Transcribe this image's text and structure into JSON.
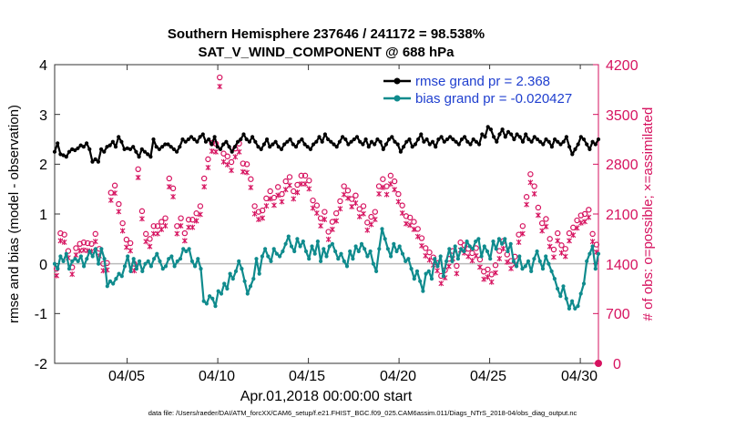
{
  "chart_data": {
    "type": "line",
    "title": "Southern Hemisphere 237646 / 241172 = 98.538%",
    "subtitle": "SAT_V_WIND_COMPONENT @ 688 hPa",
    "xlabel": "Apr.01,2018 00:00:00 start",
    "ylabel": "rmse and bias (model - observation)",
    "ylabel_right": "# of obs: o=possible; ×=assimilated",
    "footnote": "data file: /Users/raeder/DAI/ATM_forcXX/CAM6_setup/f.e21.FHIST_BGC.f09_025.CAM6assim.011/Diags_NTrS_2018-04/obs_diag_output.nc",
    "ylim": [
      -2,
      4
    ],
    "ylim_right": [
      0,
      4200
    ],
    "xlim": [
      1,
      31
    ],
    "yticks": [
      "4",
      "3",
      "2",
      "1",
      "0",
      "-1",
      "-2"
    ],
    "yticks_right": [
      "4200",
      "3500",
      "2800",
      "2100",
      "1400",
      "700",
      "0"
    ],
    "xticks": [
      {
        "label": "04/05",
        "day": 5
      },
      {
        "label": "04/10",
        "day": 10
      },
      {
        "label": "04/15",
        "day": 15
      },
      {
        "label": "04/20",
        "day": 20
      },
      {
        "label": "04/25",
        "day": 25
      },
      {
        "label": "04/30",
        "day": 30
      }
    ],
    "series": [
      {
        "name": "rmse grand pr = 2.368",
        "color": "#000000",
        "values": [
          2.25,
          2.42,
          2.2,
          2.18,
          2.15,
          2.25,
          2.3,
          2.28,
          2.32,
          2.38,
          2.35,
          2.42,
          2.3,
          2.05,
          2.1,
          2.05,
          2.3,
          2.25,
          2.35,
          2.38,
          2.45,
          2.35,
          2.55,
          2.45,
          2.3,
          2.32,
          2.3,
          2.35,
          2.25,
          2.15,
          2.3,
          2.25,
          2.2,
          2.15,
          2.5,
          2.35,
          2.3,
          2.35,
          2.4,
          2.4,
          2.35,
          2.3,
          2.25,
          2.35,
          2.5,
          2.45,
          2.5,
          2.55,
          2.5,
          2.45,
          2.55,
          2.6,
          2.45,
          2.5,
          2.4,
          2.55,
          2.35,
          2.3,
          2.4,
          2.45,
          2.35,
          2.25,
          2.35,
          2.45,
          2.5,
          2.6,
          2.5,
          2.45,
          2.55,
          2.45,
          2.35,
          2.3,
          2.4,
          2.5,
          2.35,
          2.4,
          2.45,
          2.35,
          2.3,
          2.4,
          2.45,
          2.5,
          2.4,
          2.35,
          2.45,
          2.5,
          2.4,
          2.35,
          2.3,
          2.4,
          2.45,
          2.55,
          2.45,
          2.6,
          2.5,
          2.45,
          2.4,
          2.35,
          2.45,
          2.55,
          2.5,
          2.4,
          2.45,
          2.5,
          2.55,
          2.45,
          2.4,
          2.5,
          2.35,
          2.45,
          2.4,
          2.5,
          2.45,
          2.3,
          2.4,
          2.5,
          2.55,
          2.45,
          2.4,
          2.25,
          2.35,
          2.45,
          2.5,
          2.35,
          2.4,
          2.5,
          2.6,
          2.45,
          2.5,
          2.4,
          2.45,
          2.35,
          2.5,
          2.55,
          2.45,
          2.5,
          2.55,
          2.5,
          2.45,
          2.4,
          2.5,
          2.55,
          2.45,
          2.4,
          2.5,
          2.45,
          2.4,
          2.6,
          2.55,
          2.75,
          2.7,
          2.55,
          2.45,
          2.6,
          2.7,
          2.55,
          2.65,
          2.6,
          2.5,
          2.6,
          2.55,
          2.45,
          2.6,
          2.5,
          2.45,
          2.55,
          2.5,
          2.45,
          2.4,
          2.5,
          2.45,
          2.35,
          2.5,
          2.45,
          2.4,
          2.45,
          2.55,
          2.35,
          2.2,
          2.3,
          2.4,
          2.55,
          2.5,
          2.4,
          2.3,
          2.45,
          2.4,
          2.5
        ]
      },
      {
        "name": "bias grand pr = -0.020427",
        "color": "#0f8b8d",
        "values": [
          0.0,
          -0.1,
          0.15,
          0.05,
          0.2,
          -0.1,
          0.05,
          0.1,
          0.05,
          0.15,
          -0.05,
          0.1,
          0.25,
          0.15,
          0.3,
          0.0,
          0.3,
          0.1,
          -0.45,
          -0.35,
          -0.4,
          -0.3,
          -0.2,
          -0.25,
          -0.05,
          0.15,
          -0.15,
          0.1,
          -0.1,
          0.05,
          -0.15,
          0.0,
          0.05,
          -0.05,
          0.1,
          0.2,
          0.05,
          -0.1,
          -0.05,
          0.1,
          0.15,
          -0.05,
          0.05,
          0.1,
          0.3,
          0.25,
          0.3,
          0.05,
          -0.05,
          0.1,
          -0.1,
          -0.75,
          -0.8,
          -0.65,
          -0.7,
          -0.85,
          -0.55,
          -0.6,
          -0.4,
          -0.5,
          -0.2,
          -0.3,
          -0.15,
          0.05,
          -0.1,
          -0.35,
          -0.6,
          -0.45,
          -0.3,
          0.1,
          -0.2,
          0.15,
          0.3,
          0.15,
          0.05,
          0.3,
          0.2,
          0.15,
          0.25,
          0.4,
          0.55,
          0.35,
          0.25,
          0.5,
          0.35,
          0.45,
          0.25,
          0.1,
          0.35,
          0.2,
          0.45,
          0.05,
          0.3,
          0.15,
          0.35,
          0.4,
          0.25,
          0.1,
          0.2,
          0.05,
          -0.05,
          0.25,
          0.1,
          0.35,
          0.25,
          0.4,
          0.3,
          0.15,
          0.25,
          0.0,
          -0.15,
          0.3,
          0.7,
          0.5,
          0.3,
          0.15,
          0.4,
          0.25,
          0.35,
          0.2,
          0.05,
          0.1,
          -0.1,
          -0.3,
          -0.15,
          -0.35,
          -0.55,
          -0.2,
          -0.15,
          -0.3,
          0.1,
          -0.05,
          0.15,
          -0.25,
          0.05,
          0.3,
          0.05,
          0.35,
          0.1,
          0.3,
          0.25,
          0.45,
          0.35,
          0.3,
          0.45,
          0.5,
          0.15,
          0.35,
          0.25,
          0.1,
          0.45,
          0.3,
          0.5,
          0.4,
          0.5,
          0.25,
          0.4,
          0.05,
          -0.05,
          0.15,
          -0.1,
          -0.05,
          0.05,
          -0.15,
          0.1,
          0.25,
          0.05,
          -0.1,
          0.15,
          0.0,
          -0.15,
          -0.3,
          -0.5,
          -0.65,
          -0.45,
          -0.7,
          -0.9,
          -0.75,
          -0.9,
          -0.85,
          -0.6,
          -0.4,
          0.05,
          0.2,
          0.35,
          -0.1,
          0.2
        ]
      },
      {
        "name": "possible obs",
        "color": "#d6125f",
        "values": [
          1330,
          1830,
          1810,
          1580,
          1350,
          1620,
          1680,
          1700,
          1690,
          1680,
          1820,
          1610,
          1400,
          1410,
          2400,
          2500,
          2240,
          1970,
          1740,
          1690,
          1400,
          2730,
          2140,
          1820,
          1750,
          1930,
          1930,
          1990,
          2040,
          2600,
          2460,
          1930,
          2040,
          1830,
          2020,
          2020,
          2110,
          2210,
          2600,
          2870,
          3100,
          3090,
          4020,
          2950,
          2910,
          2830,
          3020,
          3090,
          2810,
          2800,
          2590,
          2210,
          2130,
          2150,
          2320,
          2420,
          2330,
          2480,
          2380,
          2560,
          2620,
          2420,
          2510,
          2640,
          2640,
          2570,
          2290,
          2220,
          2040,
          2130,
          1850,
          1990,
          2110,
          2280,
          2490,
          2430,
          2310,
          2360,
          2170,
          2210,
          1980,
          2060,
          2130,
          2490,
          2590,
          2490,
          2640,
          2560,
          2380,
          2220,
          2070,
          2050,
          1990,
          1890,
          1760,
          1620,
          1560,
          1490,
          1410,
          1230,
          1310,
          1470,
          1580,
          1370,
          1700,
          1660,
          1610,
          1550,
          1620,
          1460,
          1290,
          1320,
          1250,
          1380,
          1580,
          1720,
          1530,
          1440,
          1500,
          1810,
          1930,
          2340,
          2660,
          2490,
          2190,
          1970,
          2030,
          1750,
          1600,
          1830,
          1660,
          1610,
          1830,
          1910,
          2010,
          2080,
          2100,
          2160,
          1820,
          1670
        ]
      },
      {
        "name": "assimilated obs",
        "color": "#d6125f",
        "values": [
          1310,
          1800,
          1780,
          1560,
          1330,
          1600,
          1660,
          1670,
          1660,
          1650,
          1790,
          1590,
          1380,
          1390,
          2370,
          2470,
          2210,
          1940,
          1710,
          1660,
          1380,
          2690,
          2110,
          1790,
          1720,
          1900,
          1900,
          1960,
          2010,
          2560,
          2420,
          1900,
          2010,
          1800,
          1990,
          1990,
          2080,
          2170,
          2560,
          2830,
          3060,
          3050,
          3970,
          2910,
          2870,
          2790,
          2980,
          3050,
          2770,
          2760,
          2550,
          2180,
          2100,
          2120,
          2290,
          2390,
          2300,
          2440,
          2350,
          2520,
          2580,
          2390,
          2480,
          2600,
          2600,
          2530,
          2260,
          2190,
          2010,
          2100,
          1820,
          1960,
          2080,
          2250,
          2450,
          2400,
          2280,
          2330,
          2140,
          2180,
          1950,
          2030,
          2100,
          2460,
          2550,
          2450,
          2600,
          2520,
          2350,
          2190,
          2040,
          2020,
          1960,
          1860,
          1730,
          1590,
          1530,
          1460,
          1380,
          1200,
          1280,
          1440,
          1550,
          1340,
          1670,
          1630,
          1580,
          1520,
          1590,
          1430,
          1260,
          1290,
          1220,
          1350,
          1550,
          1690,
          1500,
          1410,
          1470,
          1780,
          1900,
          2310,
          2620,
          2460,
          2160,
          1940,
          2000,
          1720,
          1570,
          1800,
          1630,
          1580,
          1800,
          1880,
          1980,
          2050,
          2070,
          2130,
          1790,
          1640
        ]
      }
    ],
    "legend": [
      "rmse grand pr = 2.368",
      "bias grand pr = -0.020427"
    ],
    "legend_position": "top-right",
    "reference_line": 0,
    "grid": false
  }
}
